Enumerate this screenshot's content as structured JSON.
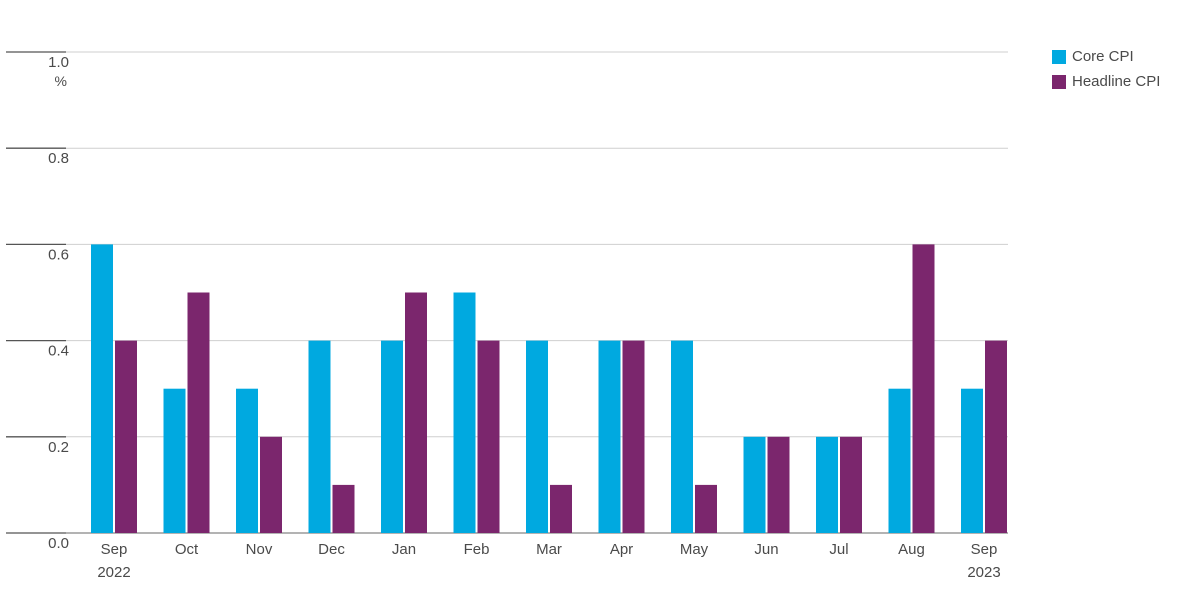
{
  "chart_data": {
    "type": "bar",
    "categories": [
      "Sep",
      "Oct",
      "Nov",
      "Dec",
      "Jan",
      "Feb",
      "Mar",
      "Apr",
      "May",
      "Jun",
      "Jul",
      "Aug",
      "Sep"
    ],
    "year_labels": [
      {
        "index": 0,
        "label": "2022"
      },
      {
        "index": 12,
        "label": "2023"
      }
    ],
    "series": [
      {
        "name": "Core CPI",
        "color": "#00a9e0",
        "values": [
          0.6,
          0.3,
          0.3,
          0.4,
          0.4,
          0.5,
          0.4,
          0.4,
          0.4,
          0.2,
          0.2,
          0.3,
          0.3
        ]
      },
      {
        "name": "Headline CPI",
        "color": "#7b266d",
        "values": [
          0.4,
          0.5,
          0.2,
          0.1,
          0.5,
          0.4,
          0.1,
          0.4,
          0.1,
          0.2,
          0.2,
          0.6,
          0.4
        ]
      }
    ],
    "yticks": [
      "0.0",
      "0.2",
      "0.4",
      "0.6",
      "0.8",
      "1.0"
    ],
    "ylim": [
      0,
      1.0
    ],
    "yunit": "%",
    "grid": true,
    "legend_position": "top-right"
  }
}
